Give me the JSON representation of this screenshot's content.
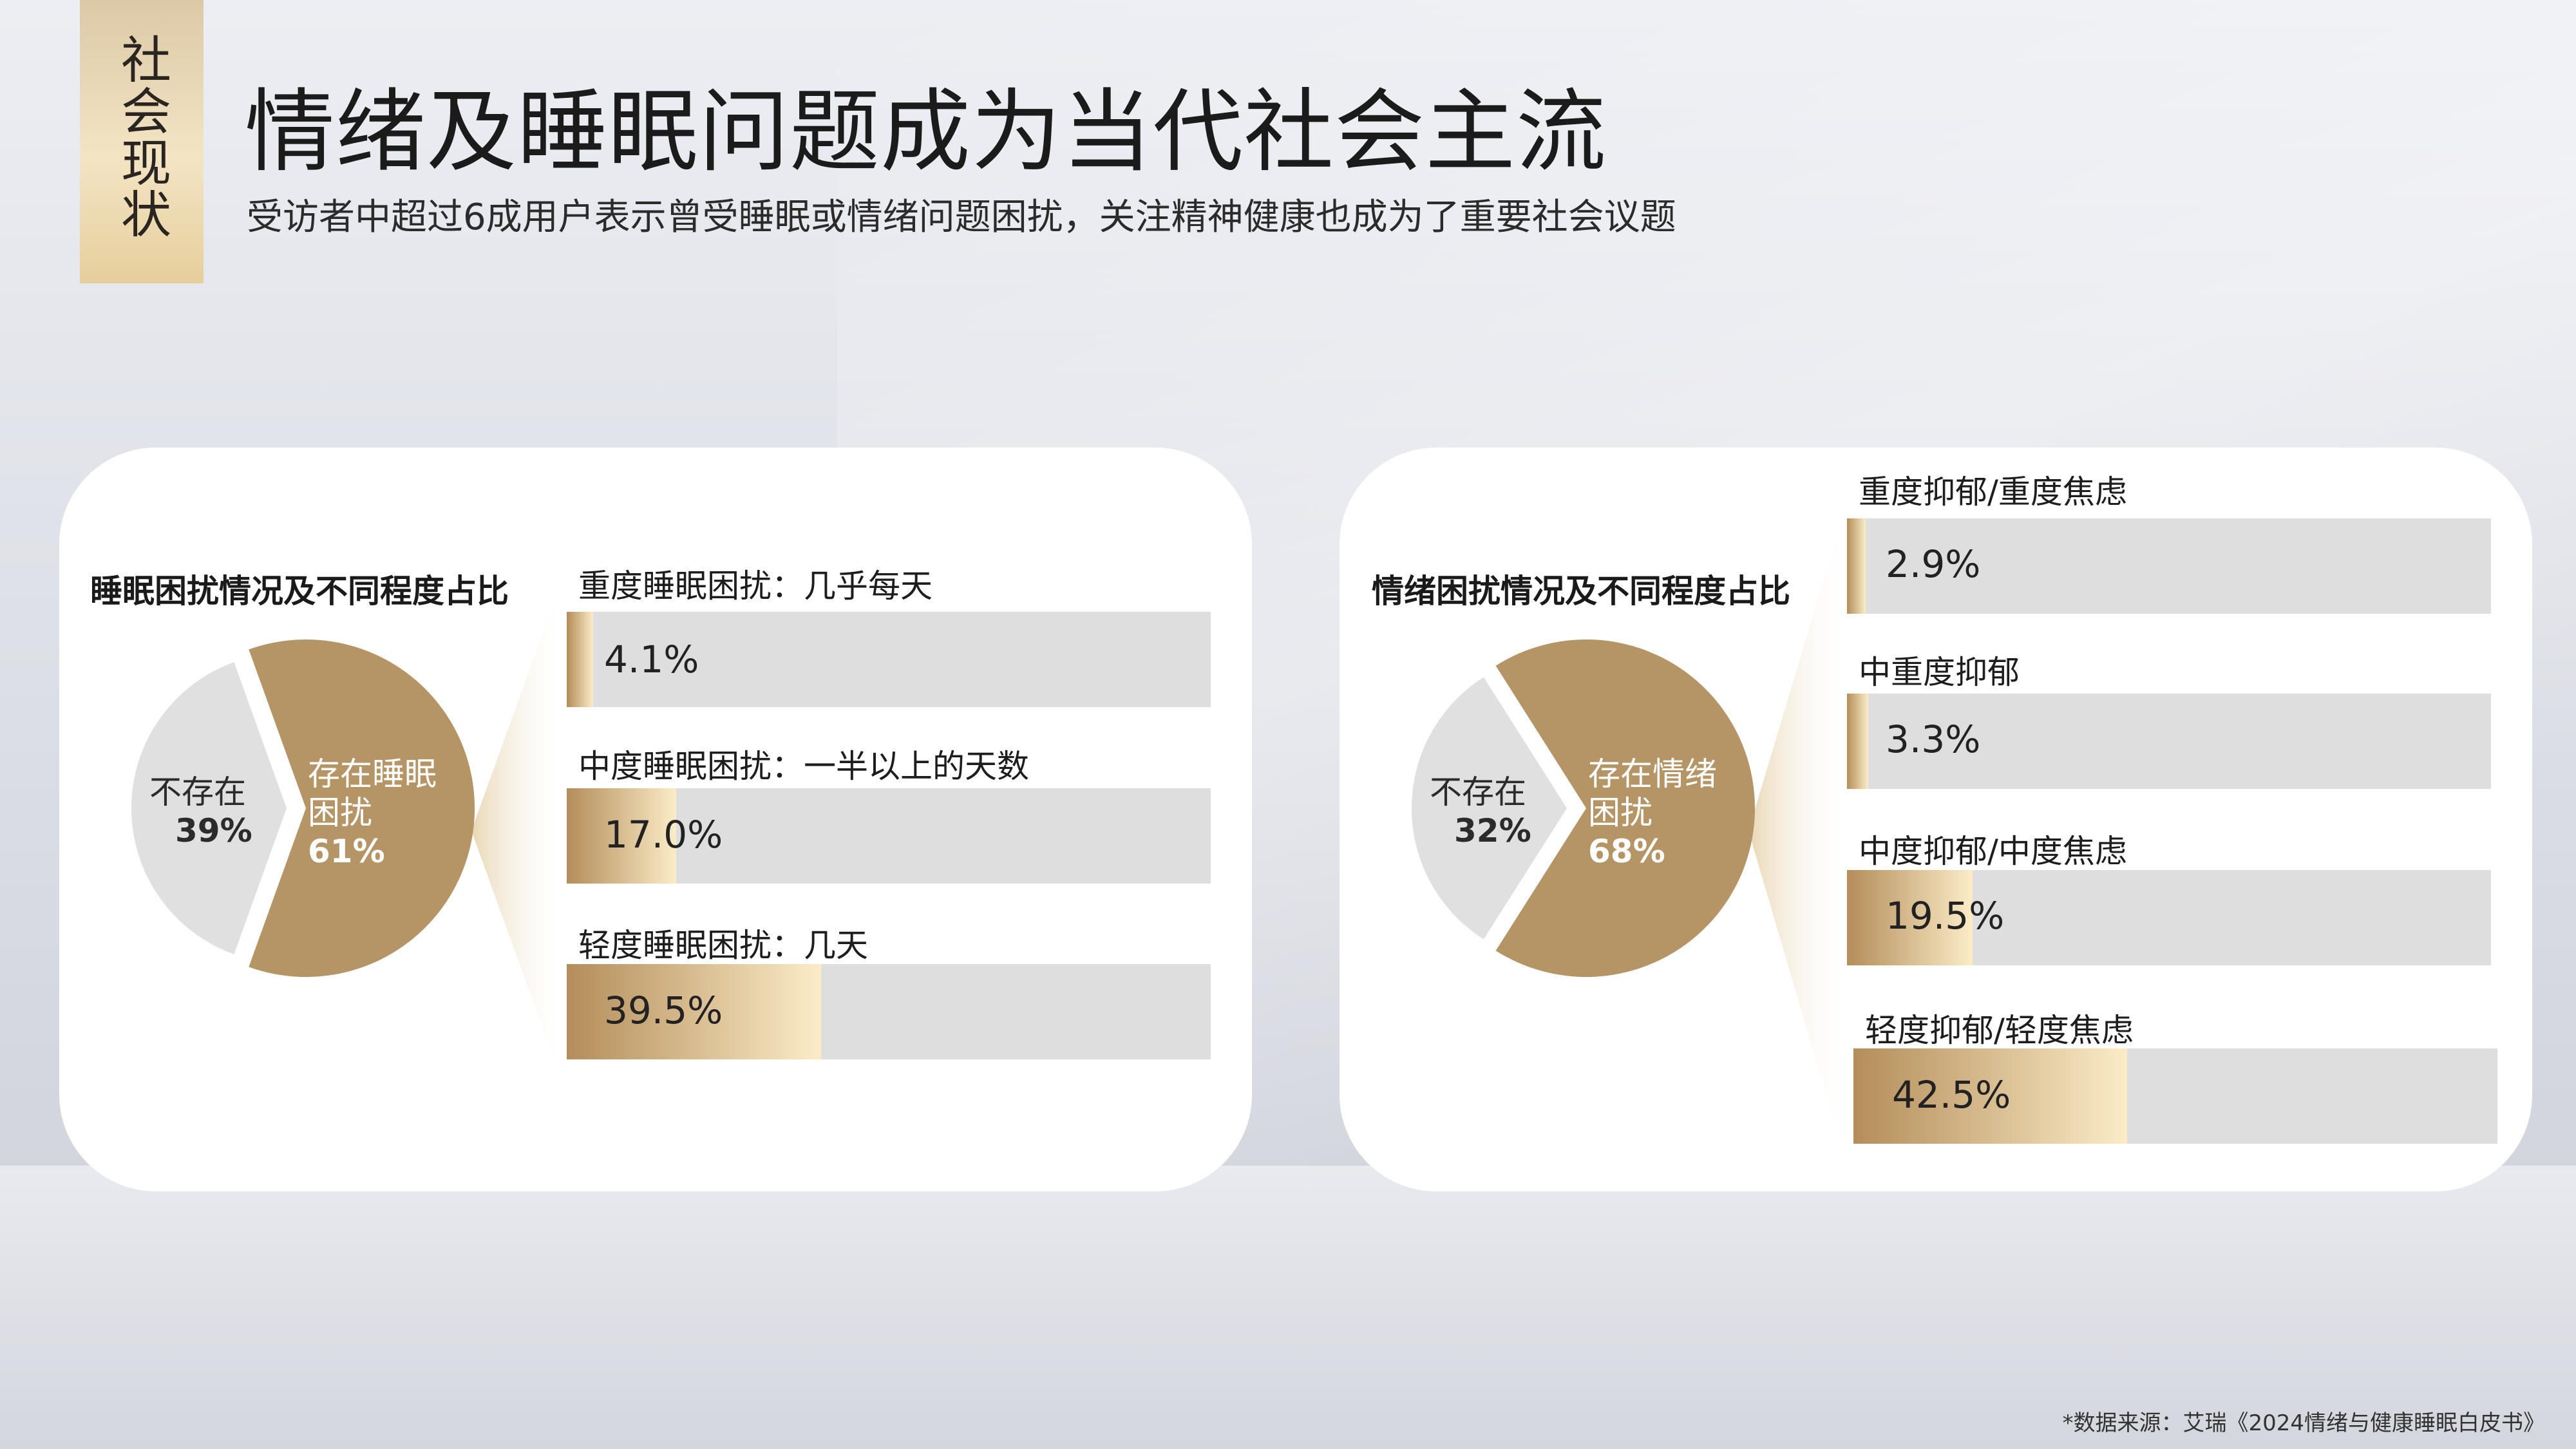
{
  "section_tag": "社会现状",
  "title": "情绪及睡眠问题成为当代社会主流",
  "subtitle": "受访者中超过6成用户表示曾受睡眠或情绪问题困扰，关注精神健康也成为了重要社会议题",
  "footnote": "*数据来源：艾瑞《2024情绪与健康睡眠白皮书》",
  "colors": {
    "pie_main": "#b59466",
    "pie_rest": "#e0e0e0",
    "bar_track": "#dedede",
    "bar_gold_start": "#b48d5a",
    "bar_gold_end": "#fbecc7"
  },
  "chart_data": [
    {
      "type": "pie",
      "title": "睡眠困扰情况及不同程度占比",
      "slices": [
        {
          "label_line1": "存在睡眠",
          "label_line2": "困扰",
          "value": 61,
          "value_label": "61%"
        },
        {
          "label_line1": "不存在",
          "label_line2": "",
          "value": 39,
          "value_label": "39%"
        }
      ],
      "breakdown": {
        "type": "bar",
        "categories": [
          "重度睡眠困扰：几乎每天",
          "中度睡眠困扰：一半以上的天数",
          "轻度睡眠困扰：几天"
        ],
        "values": [
          4.1,
          17.0,
          39.5
        ],
        "value_labels": [
          "4.1%",
          "17.0%",
          "39.5%"
        ],
        "xlim": [
          0,
          100
        ]
      }
    },
    {
      "type": "pie",
      "title": "情绪困扰情况及不同程度占比",
      "slices": [
        {
          "label_line1": "存在情绪",
          "label_line2": "困扰",
          "value": 68,
          "value_label": "68%"
        },
        {
          "label_line1": "不存在",
          "label_line2": "",
          "value": 32,
          "value_label": "32%"
        }
      ],
      "breakdown": {
        "type": "bar",
        "categories": [
          "重度抑郁/重度焦虑",
          "中重度抑郁",
          "中度抑郁/中度焦虑",
          "轻度抑郁/轻度焦虑"
        ],
        "values": [
          2.9,
          3.3,
          19.5,
          42.5
        ],
        "value_labels": [
          "2.9%",
          "3.3%",
          "19.5%",
          "42.5%"
        ],
        "xlim": [
          0,
          100
        ]
      }
    }
  ]
}
